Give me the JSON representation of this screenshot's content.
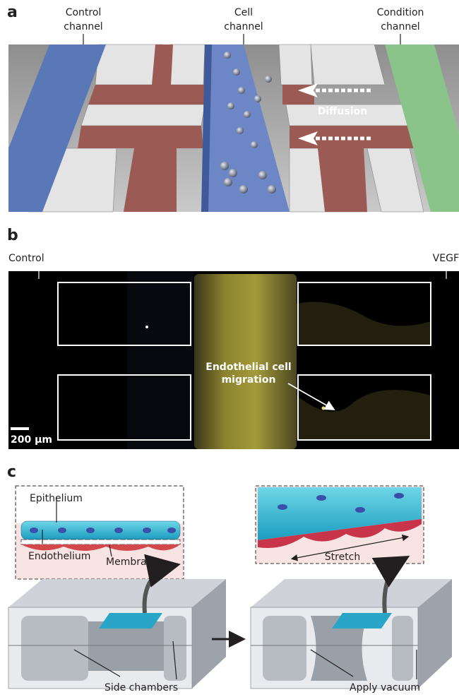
{
  "panel_a": {
    "label": "a",
    "control_channel": [
      "Control",
      "channel"
    ],
    "cell_channel": [
      "Cell",
      "channel"
    ],
    "condition_channel": [
      "Condition",
      "channel"
    ],
    "diffusion": "Diffusion"
  },
  "panel_b": {
    "label": "b",
    "control": "Control",
    "vegf": "VEGF",
    "migration": [
      "Endothelial cell",
      "migration"
    ],
    "scale_bar": "200 μm"
  },
  "panel_c": {
    "label": "c",
    "epithelium": "Epithelium",
    "endothelium": "Endothelium",
    "membrane": "Membrane",
    "stretch": "Stretch",
    "side_chambers": "Side chambers",
    "apply_vacuum": "Apply vacuum"
  }
}
